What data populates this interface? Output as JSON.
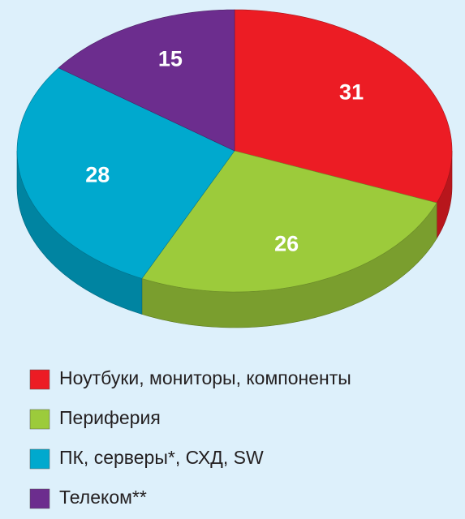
{
  "chart_data": {
    "type": "pie",
    "categories": [
      "Ноутбуки, мониторы, компоненты",
      "Периферия",
      "ПК, серверы*, СХД, SW",
      "Телеком**"
    ],
    "values": [
      31,
      26,
      28,
      15
    ],
    "colors": [
      "#ec1c24",
      "#9ccb3b",
      "#00a9ce",
      "#6c2d8e"
    ]
  }
}
